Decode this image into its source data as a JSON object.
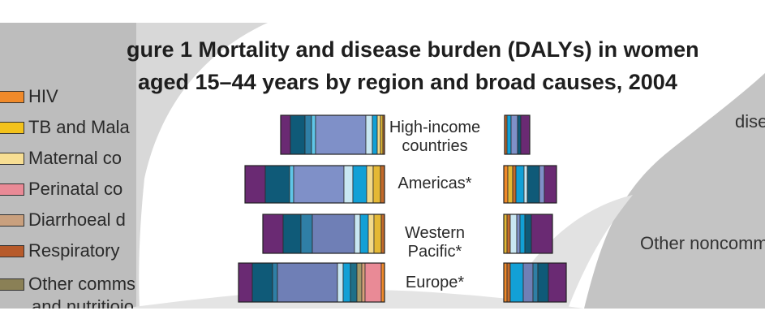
{
  "chart_data": {
    "type": "bar",
    "title_prefix": "gure 1",
    "title_bold": "Mortality and disease burden (DALYs) in women",
    "title_line2": "aged 15–44 years by region and broad causes, 2004",
    "categories": [
      "High-income countries",
      "Americas*",
      "Western Pacific*",
      "Europe*"
    ],
    "category_lines": [
      [
        "High-income",
        "countries"
      ],
      [
        "Americas*"
      ],
      [
        "Western",
        "Pacific*"
      ],
      [
        "Europe*"
      ]
    ],
    "legend": [
      {
        "label": "HIV",
        "color": "#f08a2a"
      },
      {
        "label": "TB and Mala",
        "color": "#f3c21b"
      },
      {
        "label": "Maternal co",
        "color": "#f7de93"
      },
      {
        "label": "Perinatal co",
        "color": "#e98a96"
      },
      {
        "label": "Diarrhoeal d",
        "color": "#c9a07e"
      },
      {
        "label": "Respiratory",
        "color": "#b75a2a"
      },
      {
        "label": "Other commseases",
        "color": "#8a8056"
      },
      {
        "label": "and nutritioios",
        "color": ""
      }
    ],
    "side_text": {
      "top_right": "dise",
      "middle_right": "Other noncomm"
    },
    "left_bars": [
      {
        "segments": [
          {
            "value": 12,
            "color": "#6a2a73"
          },
          {
            "value": 18,
            "color": "#0f5a78"
          },
          {
            "value": 8,
            "color": "#2f7fa6"
          },
          {
            "value": 5,
            "color": "#5fc6e8"
          },
          {
            "value": 62,
            "color": "#7f90c8"
          },
          {
            "value": 8,
            "color": "#c9e7f2"
          },
          {
            "value": 6,
            "color": "#12a0d6"
          },
          {
            "value": 4,
            "color": "#f2d98a"
          },
          {
            "value": 3,
            "color": "#e4b834"
          },
          {
            "value": 2,
            "color": "#c36a2a"
          }
        ]
      },
      {
        "segments": [
          {
            "value": 25,
            "color": "#6a2a73"
          },
          {
            "value": 30,
            "color": "#0f5a78"
          },
          {
            "value": 5,
            "color": "#5fc6e8"
          },
          {
            "value": 62,
            "color": "#7f90c8"
          },
          {
            "value": 11,
            "color": "#c9e7f2"
          },
          {
            "value": 17,
            "color": "#12a0d6"
          },
          {
            "value": 8,
            "color": "#f2d98a"
          },
          {
            "value": 9,
            "color": "#e4b834"
          },
          {
            "value": 5,
            "color": "#c36a2a"
          }
        ]
      },
      {
        "segments": [
          {
            "value": 25,
            "color": "#6a2a73"
          },
          {
            "value": 22,
            "color": "#0f5a78"
          },
          {
            "value": 14,
            "color": "#2f7fa6"
          },
          {
            "value": 52,
            "color": "#6f7fb6"
          },
          {
            "value": 7,
            "color": "#c9e7f2"
          },
          {
            "value": 10,
            "color": "#12a0d6"
          },
          {
            "value": 7,
            "color": "#f2d98a"
          },
          {
            "value": 9,
            "color": "#e4b834"
          },
          {
            "value": 4,
            "color": "#c36a2a"
          }
        ]
      },
      {
        "segments": [
          {
            "value": 17,
            "color": "#6a2a73"
          },
          {
            "value": 25,
            "color": "#0f5a78"
          },
          {
            "value": 6,
            "color": "#2f7fa6"
          },
          {
            "value": 74,
            "color": "#6f7fb6"
          },
          {
            "value": 7,
            "color": "#c9e7f2"
          },
          {
            "value": 9,
            "color": "#12a0d6"
          },
          {
            "value": 8,
            "color": "#1f6f88"
          },
          {
            "value": 6,
            "color": "#a59a6a"
          },
          {
            "value": 4,
            "color": "#d8a07a"
          },
          {
            "value": 20,
            "color": "#e98a96"
          },
          {
            "value": 4,
            "color": "#f08a2a"
          }
        ]
      }
    ],
    "right_bars": [
      {
        "segments": [
          {
            "value": 3,
            "color": "#c36a2a"
          },
          {
            "value": 5,
            "color": "#12a0d6"
          },
          {
            "value": 8,
            "color": "#7f90c8"
          },
          {
            "value": 4,
            "color": "#0f5a78"
          },
          {
            "value": 11,
            "color": "#6a2a73"
          }
        ]
      },
      {
        "segments": [
          {
            "value": 5,
            "color": "#f08a2a"
          },
          {
            "value": 6,
            "color": "#e4b834"
          },
          {
            "value": 4,
            "color": "#c36a2a"
          },
          {
            "value": 10,
            "color": "#12a0d6"
          },
          {
            "value": 4,
            "color": "#c9e7f2"
          },
          {
            "value": 15,
            "color": "#0f5a78"
          },
          {
            "value": 6,
            "color": "#7f90c8"
          },
          {
            "value": 15,
            "color": "#6a2a73"
          }
        ]
      },
      {
        "segments": [
          {
            "value": 4,
            "color": "#e4b834"
          },
          {
            "value": 4,
            "color": "#c36a2a"
          },
          {
            "value": 8,
            "color": "#c9e7f2"
          },
          {
            "value": 4,
            "color": "#7f90c8"
          },
          {
            "value": 6,
            "color": "#12a0d6"
          },
          {
            "value": 8,
            "color": "#0f5a78"
          },
          {
            "value": 26,
            "color": "#6a2a73"
          }
        ]
      },
      {
        "segments": [
          {
            "value": 4,
            "color": "#f08a2a"
          },
          {
            "value": 4,
            "color": "#c36a2a"
          },
          {
            "value": 16,
            "color": "#12a0d6"
          },
          {
            "value": 12,
            "color": "#6f7fb6"
          },
          {
            "value": 6,
            "color": "#2f7fa6"
          },
          {
            "value": 13,
            "color": "#0f5a78"
          },
          {
            "value": 22,
            "color": "#6a2a73"
          }
        ]
      }
    ]
  }
}
